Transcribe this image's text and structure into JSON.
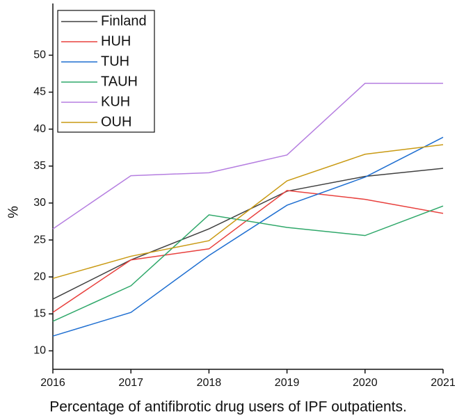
{
  "chart_data": {
    "type": "line",
    "xlabel": "Percentage of antifibrotic drug users of IPF outpatients.",
    "ylabel": "%",
    "x": [
      2016,
      2017,
      2018,
      2019,
      2020,
      2021
    ],
    "series": [
      {
        "name": "Finland",
        "color": "#404040",
        "values": [
          17.0,
          22.3,
          26.5,
          31.6,
          33.6,
          34.7
        ]
      },
      {
        "name": "HUH",
        "color": "#e8403d",
        "values": [
          15.2,
          22.3,
          23.8,
          31.7,
          30.5,
          28.6
        ]
      },
      {
        "name": "TUH",
        "color": "#1f6fd1",
        "values": [
          12.0,
          15.2,
          22.9,
          29.7,
          33.5,
          38.9
        ]
      },
      {
        "name": "TAUH",
        "color": "#2fa86a",
        "values": [
          14.0,
          18.8,
          28.4,
          26.7,
          25.6,
          29.6
        ]
      },
      {
        "name": "KUH",
        "color": "#b57ee0",
        "values": [
          26.5,
          33.7,
          34.1,
          36.5,
          46.2,
          46.2
        ]
      },
      {
        "name": "OUH",
        "color": "#c99a13",
        "values": [
          19.8,
          22.8,
          24.9,
          33.0,
          36.6,
          37.9
        ]
      }
    ],
    "xlim": [
      2016,
      2021
    ],
    "xticks": [
      2016,
      2017,
      2018,
      2019,
      2020,
      2021
    ],
    "ylim": [
      7.5,
      57
    ],
    "yticks": [
      10,
      15,
      20,
      25,
      30,
      35,
      40,
      45,
      50
    ],
    "grid": false,
    "legend": "upper left"
  }
}
